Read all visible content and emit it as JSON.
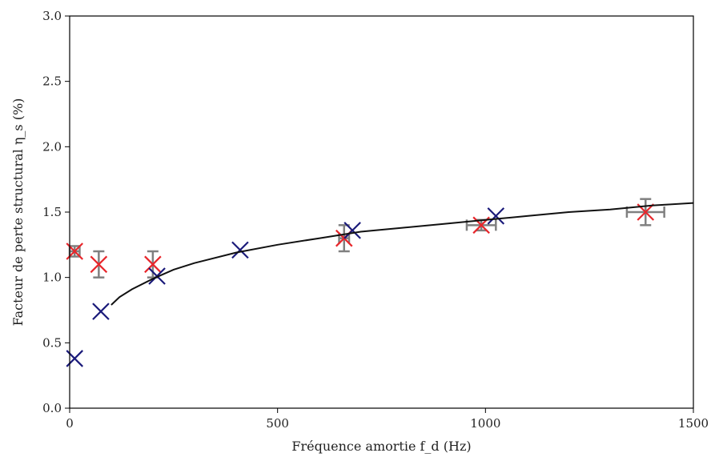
{
  "chart_data": {
    "type": "scatter",
    "xlabel": "Fréquence amortie f_d (Hz)",
    "ylabel": "Facteur de perte structural η_s (%)",
    "xlim": [
      0,
      1500
    ],
    "ylim": [
      0.0,
      3.0
    ],
    "x_ticks": [
      "0",
      "500",
      "1000",
      "1500"
    ],
    "y_ticks": [
      "0.0",
      "0.5",
      "1.0",
      "1.5",
      "2.0",
      "2.5",
      "3.0"
    ],
    "grid": false,
    "legend": "none",
    "colors": {
      "red": "#e8262b",
      "blue": "#1a1a7a",
      "line": "#111111",
      "errorbar": "#808080"
    },
    "series": [
      {
        "marker": "x",
        "color": "#e8262b",
        "points": [
          {
            "x": 12,
            "y": 1.2,
            "xerr": 12,
            "yerr": 0.04
          },
          {
            "x": 70,
            "y": 1.1,
            "xerr": 0,
            "yerr": 0.1
          },
          {
            "x": 200,
            "y": 1.1,
            "xerr": 0,
            "yerr": 0.1
          },
          {
            "x": 660,
            "y": 1.3,
            "xerr": 12,
            "yerr": 0.1
          },
          {
            "x": 990,
            "y": 1.4,
            "xerr": 35,
            "yerr": 0.04
          },
          {
            "x": 1385,
            "y": 1.5,
            "xerr": 45,
            "yerr": 0.1
          }
        ]
      },
      {
        "marker": "x",
        "color": "#1a1a7a",
        "points": [
          {
            "x": 12,
            "y": 0.38
          },
          {
            "x": 75,
            "y": 0.74
          },
          {
            "x": 210,
            "y": 1.01
          },
          {
            "x": 410,
            "y": 1.21
          },
          {
            "x": 680,
            "y": 1.36
          },
          {
            "x": 1025,
            "y": 1.47
          }
        ]
      },
      {
        "type": "line",
        "color": "#111111",
        "x": [
          100,
          120,
          150,
          200,
          250,
          300,
          400,
          500,
          600,
          700,
          800,
          900,
          1000,
          1100,
          1200,
          1300,
          1400,
          1500
        ],
        "y": [
          0.79,
          0.85,
          0.91,
          0.99,
          1.06,
          1.11,
          1.19,
          1.25,
          1.3,
          1.35,
          1.38,
          1.41,
          1.44,
          1.47,
          1.5,
          1.52,
          1.55,
          1.57
        ]
      }
    ]
  }
}
